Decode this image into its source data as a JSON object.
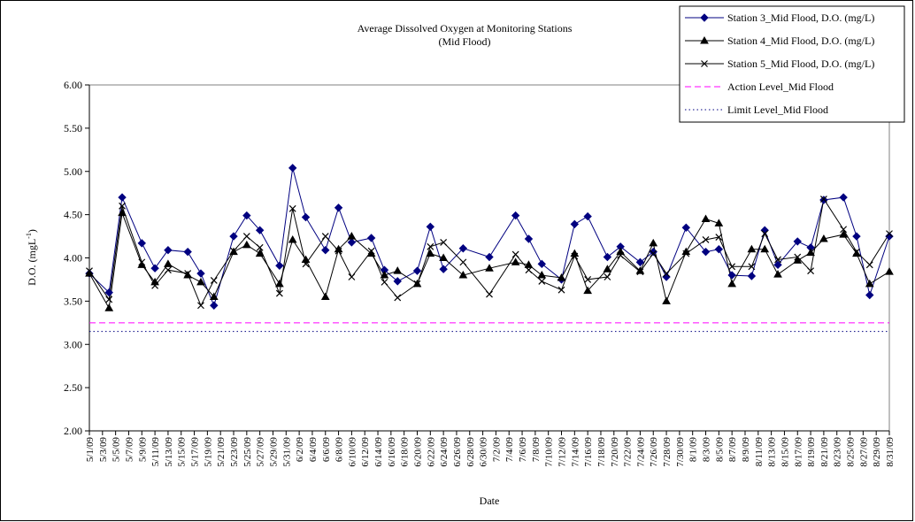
{
  "chart_data": {
    "type": "line",
    "title": "Average Dissolved Oxygen at Monitoring Stations",
    "subtitle": "(Mid Flood)",
    "xlabel": "Date",
    "ylabel": [
      "D.O. (mgL",
      "-1",
      ")"
    ],
    "x": [
      "5/1/09",
      "5/4/09",
      "5/6/09",
      "5/9/09",
      "5/11/09",
      "5/13/09",
      "5/16/09",
      "5/18/09",
      "5/20/09",
      "5/23/09",
      "5/25/09",
      "5/27/09",
      "5/30/09",
      "6/1/09",
      "6/3/09",
      "6/6/09",
      "6/8/09",
      "6/10/09",
      "6/13/09",
      "6/15/09",
      "6/17/09",
      "6/20/09",
      "6/22/09",
      "6/24/09",
      "6/27/09",
      "7/1/09",
      "7/5/09",
      "7/7/09",
      "7/9/09",
      "7/12/09",
      "7/14/09",
      "7/16/09",
      "7/19/09",
      "7/21/09",
      "7/24/09",
      "7/26/09",
      "7/28/09",
      "7/31/09",
      "8/3/09",
      "8/5/09",
      "8/7/09",
      "8/10/09",
      "8/12/09",
      "8/14/09",
      "8/17/09",
      "8/19/09",
      "8/21/09",
      "8/24/09",
      "8/26/09",
      "8/28/09",
      "8/31/09"
    ],
    "series": [
      {
        "name": "Station 3_Mid Flood, D.O. (mg/L)",
        "color": "#000080",
        "marker": "diamond",
        "values": [
          3.82,
          3.6,
          4.7,
          4.17,
          3.88,
          4.09,
          4.07,
          3.82,
          3.45,
          4.25,
          4.49,
          4.32,
          3.91,
          5.04,
          4.47,
          4.09,
          4.58,
          4.18,
          4.23,
          3.86,
          3.73,
          3.85,
          4.36,
          3.87,
          4.11,
          4.01,
          4.49,
          4.22,
          3.93,
          3.75,
          4.39,
          4.48,
          4.01,
          4.13,
          3.95,
          4.07,
          3.78,
          4.35,
          4.07,
          4.1,
          3.8,
          3.79,
          4.32,
          3.92,
          4.19,
          4.12,
          4.67,
          4.7,
          4.25,
          3.57,
          4.25
        ]
      },
      {
        "name": "Station 4_Mid Flood, D.O. (mg/L)",
        "color": "#000000",
        "marker": "triangle",
        "values": [
          3.82,
          3.42,
          4.52,
          3.92,
          3.72,
          3.93,
          3.8,
          3.72,
          3.55,
          4.07,
          4.15,
          4.05,
          3.7,
          4.21,
          3.98,
          3.55,
          4.1,
          4.25,
          4.05,
          3.8,
          3.85,
          3.7,
          4.05,
          4.0,
          3.8,
          3.88,
          3.95,
          3.92,
          3.8,
          3.77,
          4.05,
          3.62,
          3.87,
          4.07,
          3.85,
          4.17,
          3.5,
          4.07,
          4.45,
          4.4,
          3.7,
          4.1,
          4.1,
          3.81,
          3.97,
          4.06,
          4.22,
          4.27,
          4.05,
          3.7,
          3.84
        ]
      },
      {
        "name": "Station 5_Mid Flood, D.O. (mg/L)",
        "color": "#000000",
        "marker": "x",
        "values": [
          3.85,
          3.52,
          4.6,
          3.95,
          3.68,
          3.86,
          3.82,
          3.45,
          3.74,
          4.08,
          4.25,
          4.12,
          3.59,
          4.57,
          3.93,
          4.25,
          4.08,
          3.78,
          4.08,
          3.72,
          3.54,
          3.7,
          4.13,
          4.18,
          3.95,
          3.58,
          4.04,
          3.86,
          3.73,
          3.63,
          4.02,
          3.75,
          3.78,
          4.03,
          3.84,
          4.05,
          3.82,
          4.05,
          4.21,
          4.24,
          3.9,
          3.9,
          4.28,
          3.98,
          4.01,
          3.85,
          4.68,
          4.33,
          4.07,
          3.92,
          4.28
        ]
      }
    ],
    "reference_lines": [
      {
        "name": "Action Level_Mid Flood",
        "value": 3.25,
        "color": "#ff00ff",
        "style": "dashed"
      },
      {
        "name": "Limit Level_Mid Flood",
        "value": 3.15,
        "color": "#000080",
        "style": "dotted"
      }
    ],
    "xlim": [
      "5/1/09",
      "8/31/09"
    ],
    "xticks": [
      "5/1/09",
      "5/3/09",
      "5/5/09",
      "5/7/09",
      "5/9/09",
      "5/11/09",
      "5/13/09",
      "5/15/09",
      "5/17/09",
      "5/19/09",
      "5/21/09",
      "5/23/09",
      "5/25/09",
      "5/27/09",
      "5/29/09",
      "5/31/09",
      "6/2/09",
      "6/4/09",
      "6/6/09",
      "6/8/09",
      "6/10/09",
      "6/12/09",
      "6/14/09",
      "6/16/09",
      "6/18/09",
      "6/20/09",
      "6/22/09",
      "6/24/09",
      "6/26/09",
      "6/28/09",
      "6/30/09",
      "7/2/09",
      "7/4/09",
      "7/6/09",
      "7/8/09",
      "7/10/09",
      "7/12/09",
      "7/14/09",
      "7/16/09",
      "7/18/09",
      "7/20/09",
      "7/22/09",
      "7/24/09",
      "7/26/09",
      "7/28/09",
      "7/30/09",
      "8/1/09",
      "8/3/09",
      "8/5/09",
      "8/7/09",
      "8/9/09",
      "8/11/09",
      "8/13/09",
      "8/15/09",
      "8/17/09",
      "8/19/09",
      "8/21/09",
      "8/23/09",
      "8/25/09",
      "8/27/09",
      "8/29/09",
      "8/31/09"
    ],
    "ylim": [
      2,
      6
    ],
    "yticks": [
      {
        "value": 2,
        "label": "2.00"
      },
      {
        "value": 2.5,
        "label": "2.50"
      },
      {
        "value": 3,
        "label": "3.00"
      },
      {
        "value": 3.5,
        "label": "3.50"
      },
      {
        "value": 4,
        "label": "4.00"
      },
      {
        "value": 4.5,
        "label": "4.50"
      },
      {
        "value": 5,
        "label": "5.00"
      },
      {
        "value": 5.5,
        "label": "5.50"
      },
      {
        "value": 6,
        "label": "6.00"
      }
    ],
    "grid": false,
    "legend": "top-right"
  }
}
